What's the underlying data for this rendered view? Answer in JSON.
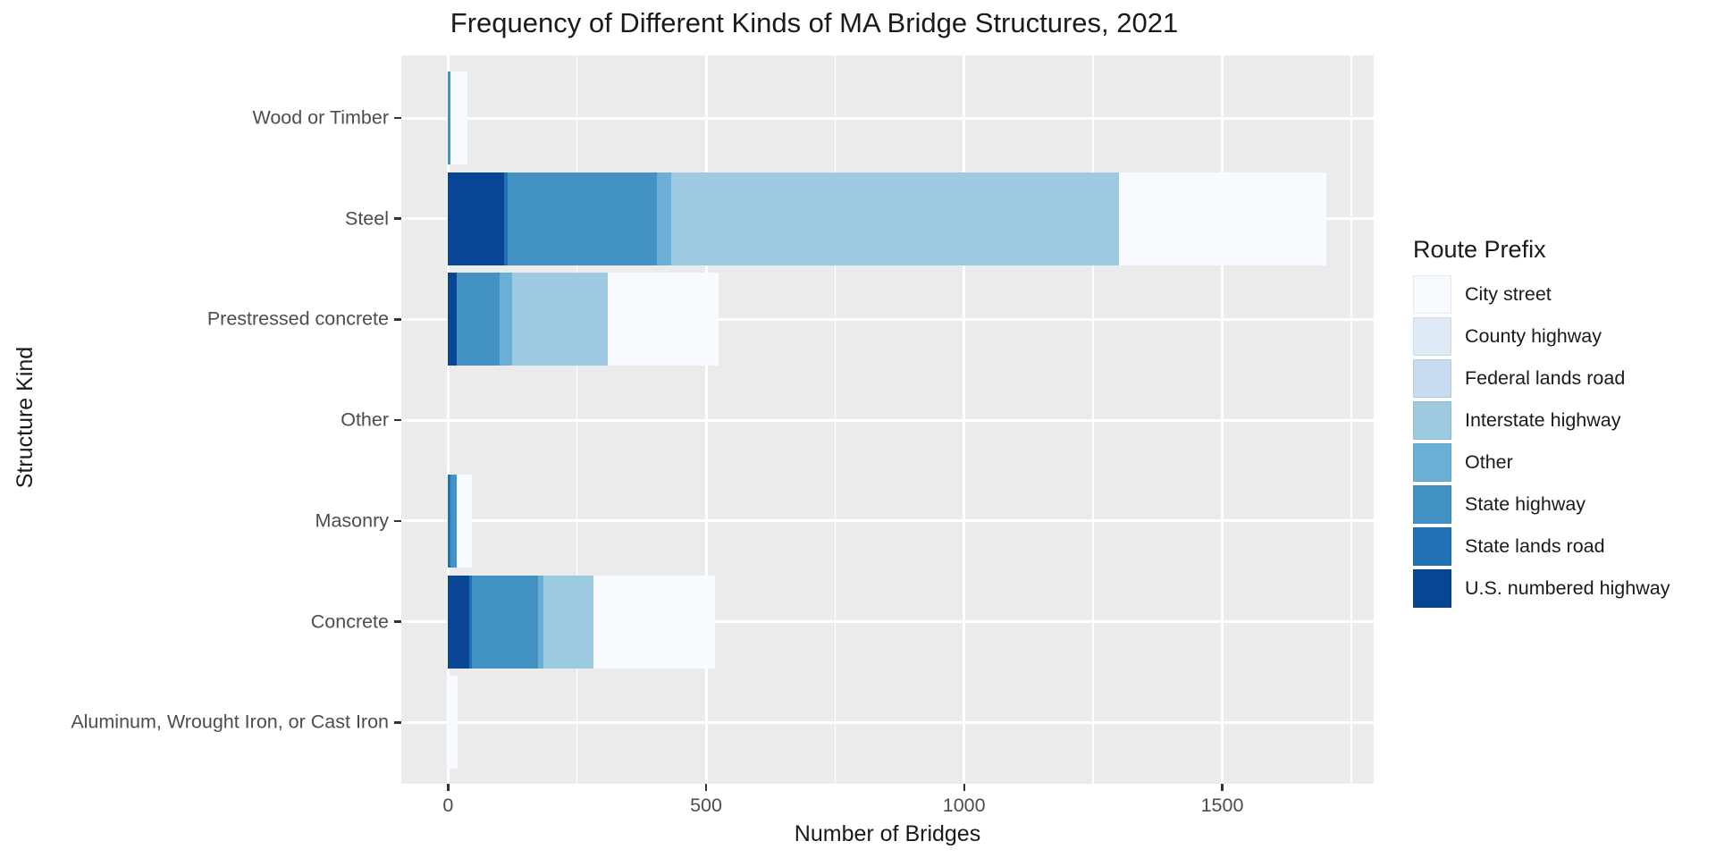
{
  "title": "Frequency of Different Kinds of MA Bridge Structures, 2021",
  "chart_data": {
    "type": "bar",
    "orientation": "horizontal",
    "stacked": true,
    "title": "Frequency of Different Kinds of MA Bridge Structures, 2021",
    "xlabel": "Number of Bridges",
    "ylabel": "Structure Kind",
    "panel_bg": "#EBEBEB",
    "grid_color": "#FFFFFF",
    "tick_color": "#333333",
    "tick_label_color": "#4D4D4D",
    "categories": [
      "Wood or Timber",
      "Steel",
      "Prestressed concrete",
      "Other",
      "Masonry",
      "Concrete",
      "Aluminum, Wrought Iron, or Cast Iron"
    ],
    "x_ticks": [
      0,
      500,
      1000,
      1500
    ],
    "x_tick_labels": [
      "0",
      "500",
      "1000",
      "1500"
    ],
    "x_minor_ticks": [
      250,
      750,
      1250,
      1750
    ],
    "xlim": [
      0,
      1794
    ],
    "series": [
      {
        "name": "U.S. numbered highway",
        "color": "#084594",
        "values": [
          0,
          109,
          17,
          0,
          0,
          41,
          0
        ]
      },
      {
        "name": "State lands road",
        "color": "#2171B5",
        "values": [
          0,
          6,
          0,
          0,
          5,
          5,
          0
        ]
      },
      {
        "name": "State highway",
        "color": "#4292C6",
        "values": [
          4,
          290,
          83,
          0,
          12,
          128,
          0
        ]
      },
      {
        "name": "Other",
        "color": "#6BAED6",
        "values": [
          0,
          27,
          24,
          0,
          0,
          11,
          0
        ]
      },
      {
        "name": "Interstate highway",
        "color": "#9ECAE1",
        "values": [
          0,
          868,
          185,
          0,
          0,
          96,
          0
        ]
      },
      {
        "name": "Federal lands road",
        "color": "#C6DBEF",
        "values": [
          0,
          0,
          0,
          0,
          0,
          0,
          0
        ]
      },
      {
        "name": "County highway",
        "color": "#DEEBF7",
        "values": [
          0,
          0,
          0,
          0,
          0,
          0,
          0
        ]
      },
      {
        "name": "City street",
        "color": "#F7FBFF",
        "values": [
          33,
          402,
          215,
          2,
          30,
          237,
          19
        ]
      }
    ],
    "legend": {
      "title": "Route Prefix",
      "position": "right",
      "items": [
        {
          "label": "City street",
          "color": "#F7FBFF"
        },
        {
          "label": "County highway",
          "color": "#DEEBF7"
        },
        {
          "label": "Federal lands road",
          "color": "#C6DBEF"
        },
        {
          "label": "Interstate highway",
          "color": "#9ECAE1"
        },
        {
          "label": "Other",
          "color": "#6BAED6"
        },
        {
          "label": "State highway",
          "color": "#4292C6"
        },
        {
          "label": "State lands road",
          "color": "#2171B5"
        },
        {
          "label": "U.S. numbered highway",
          "color": "#084594"
        }
      ]
    }
  }
}
